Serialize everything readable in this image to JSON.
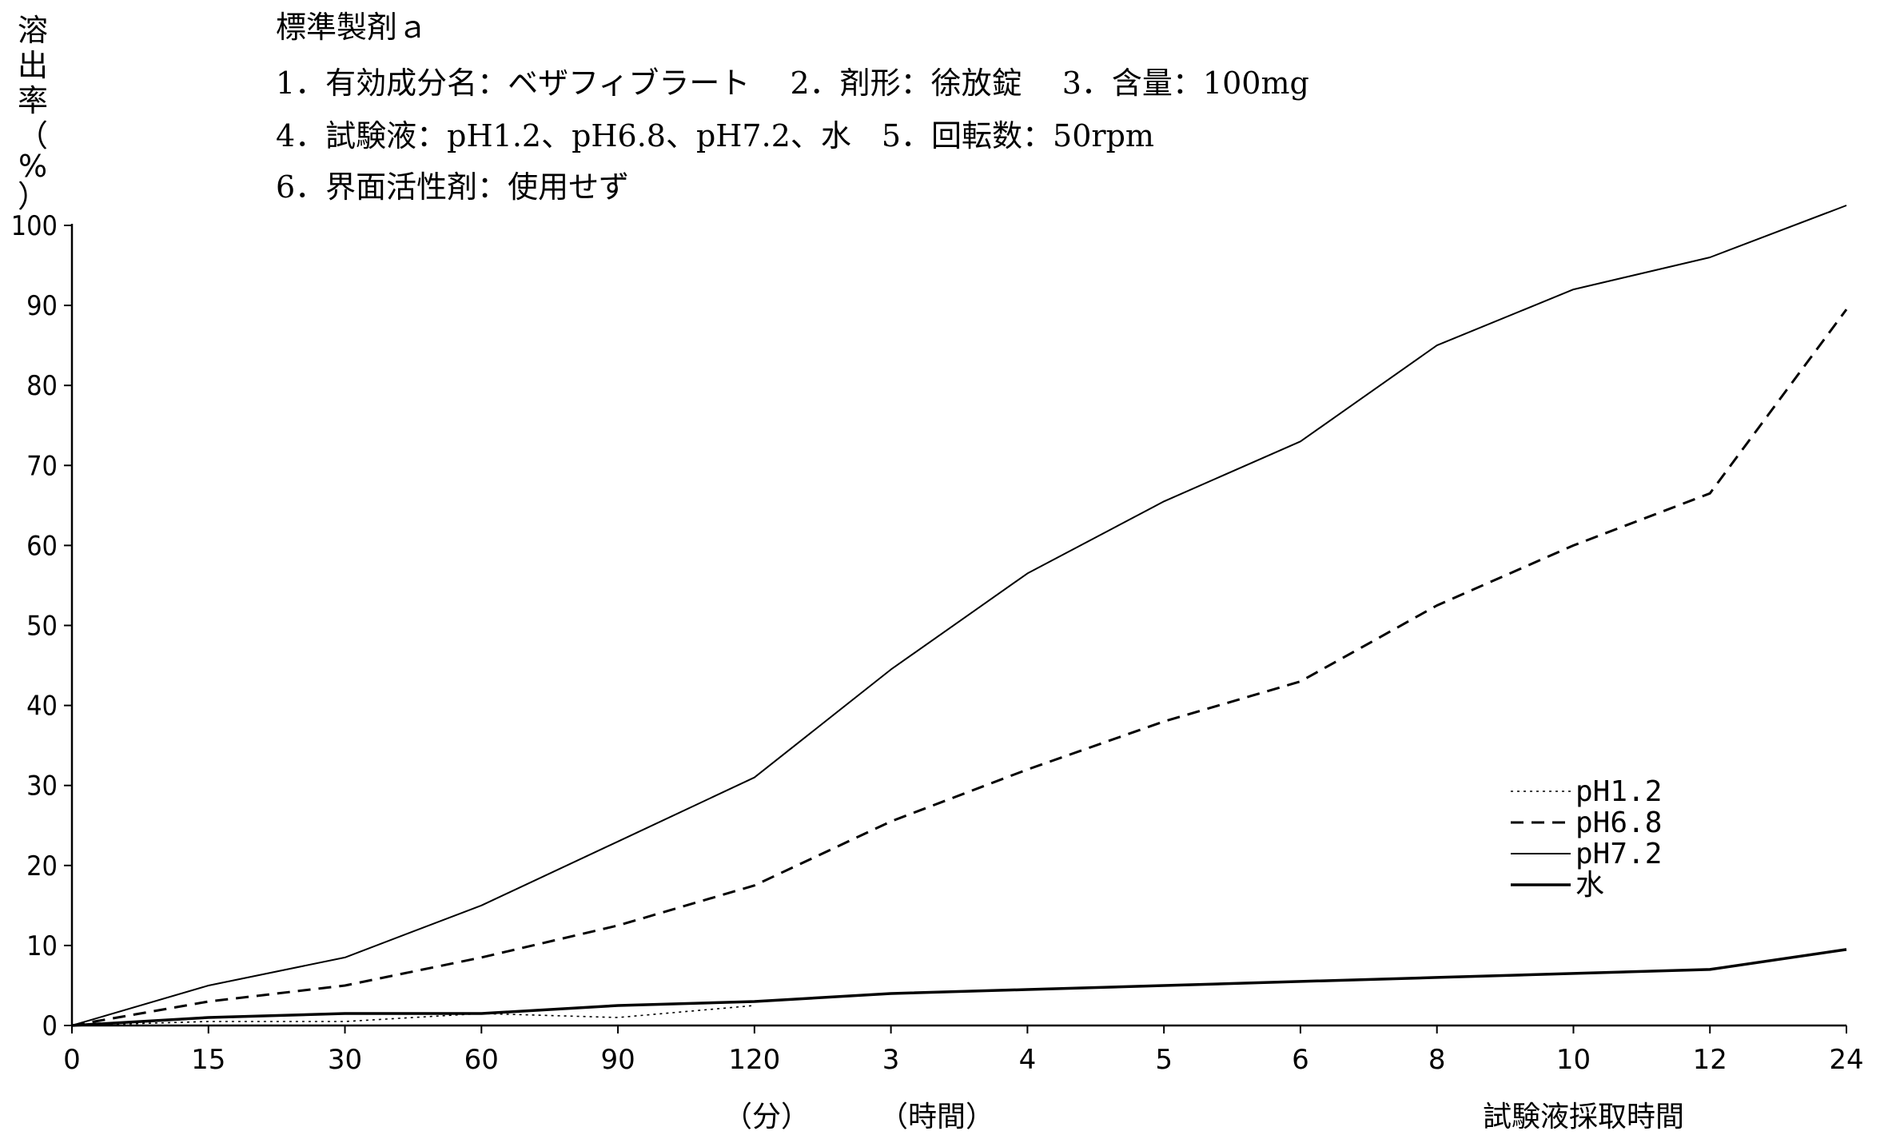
{
  "y_axis_title_chars": [
    "溶",
    "出",
    "率",
    "（",
    "%",
    "）"
  ],
  "header": {
    "product": "標準製剤ａ",
    "line1": "1．有効成分名：ベザフィブラート　 2．剤形：徐放錠　 3．含量：100mg",
    "line2": "4．試験液：pH1.2、pH6.8、pH7.2、水　5．回転数：50rpm",
    "line3": "6．界面活性剤：使用せず"
  },
  "x_units": {
    "minutes": "（分）",
    "hours": "（時間）"
  },
  "x_axis_title": "試験液採取時間",
  "chart_data": {
    "type": "line",
    "title": "標準製剤ａ",
    "xlabel": "試験液採取時間",
    "ylabel": "溶出率（%）",
    "categories": [
      "0",
      "15",
      "30",
      "60",
      "90",
      "120",
      "3",
      "4",
      "5",
      "6",
      "8",
      "10",
      "12",
      "24"
    ],
    "ylim": [
      0,
      100
    ],
    "yticks": [
      0,
      10,
      20,
      30,
      40,
      50,
      60,
      70,
      80,
      90,
      100
    ],
    "grid": false,
    "legend_position": "right",
    "series": [
      {
        "name": "pH1.2",
        "style": "dotted",
        "stroke_width": 1.6,
        "values": [
          0,
          0.5,
          0.5,
          1.5,
          1,
          2.5,
          null,
          null,
          null,
          null,
          null,
          null,
          null,
          null
        ]
      },
      {
        "name": "pH6.8",
        "style": "dashed",
        "stroke_width": 3,
        "values": [
          0,
          3,
          5,
          8.5,
          12.5,
          17.5,
          25.5,
          32,
          38,
          43,
          52.5,
          60,
          66.5,
          89.5
        ]
      },
      {
        "name": "pH7.2",
        "style": "solid",
        "stroke_width": 2,
        "values": [
          0,
          5,
          8.5,
          15,
          23,
          31,
          44.5,
          56.5,
          65.5,
          73,
          85,
          92,
          96,
          102.5
        ]
      },
      {
        "name": "水",
        "style": "solid",
        "stroke_width": 3.5,
        "values": [
          0,
          1,
          1.5,
          1.5,
          2.5,
          3,
          4,
          4.5,
          5,
          5.5,
          6,
          6.5,
          7,
          9.5
        ]
      }
    ],
    "colors": {
      "line": "#000000",
      "background": "#ffffff"
    }
  }
}
